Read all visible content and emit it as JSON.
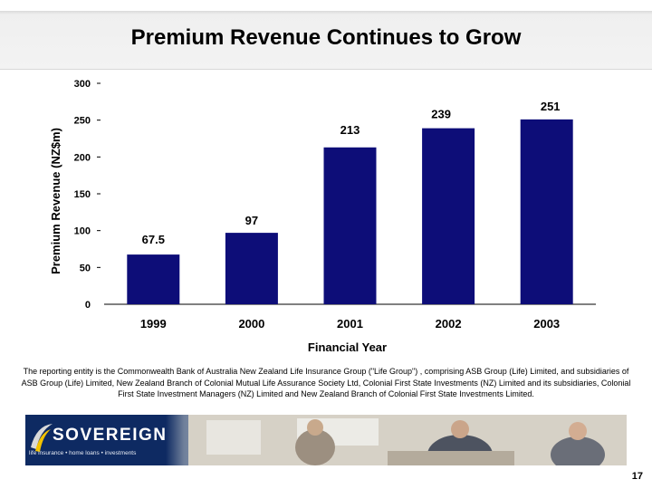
{
  "slide": {
    "title": "Premium Revenue Continues to Grow",
    "footnote": "The reporting entity is the Commonwealth Bank of Australia New Zealand Life Insurance Group (\"Life Group\") , comprising ASB Group (Life) Limited, and subsidiaries of ASB Group (Life) Limited, New Zealand Branch of Colonial Mutual Life Assurance Society Ltd, Colonial First State Investments (NZ) Limited and its subsidiaries, Colonial First State Investment Managers (NZ) Limited and New Zealand Branch of Colonial First State Investments Limited.",
    "page_number": "17"
  },
  "banner": {
    "logo_text": "SOVEREIGN",
    "tagline": "life insurance • home loans • investments"
  },
  "colors": {
    "bar": "#0d0d78",
    "axis": "#000000",
    "banner_navy": "#0e2a62"
  },
  "chart_data": {
    "type": "bar",
    "title": "",
    "categories": [
      "1999",
      "2000",
      "2001",
      "2002",
      "2003"
    ],
    "values": [
      67.5,
      97,
      213,
      239,
      251
    ],
    "value_labels": [
      "67.5",
      "97",
      "213",
      "239",
      "251"
    ],
    "xlabel": "Financial Year",
    "ylabel": "Premium Revenue (NZ$m)",
    "ylim": [
      0,
      300
    ],
    "yticks": [
      0,
      50,
      100,
      150,
      200,
      250,
      300
    ],
    "grid": false,
    "legend": "none"
  }
}
